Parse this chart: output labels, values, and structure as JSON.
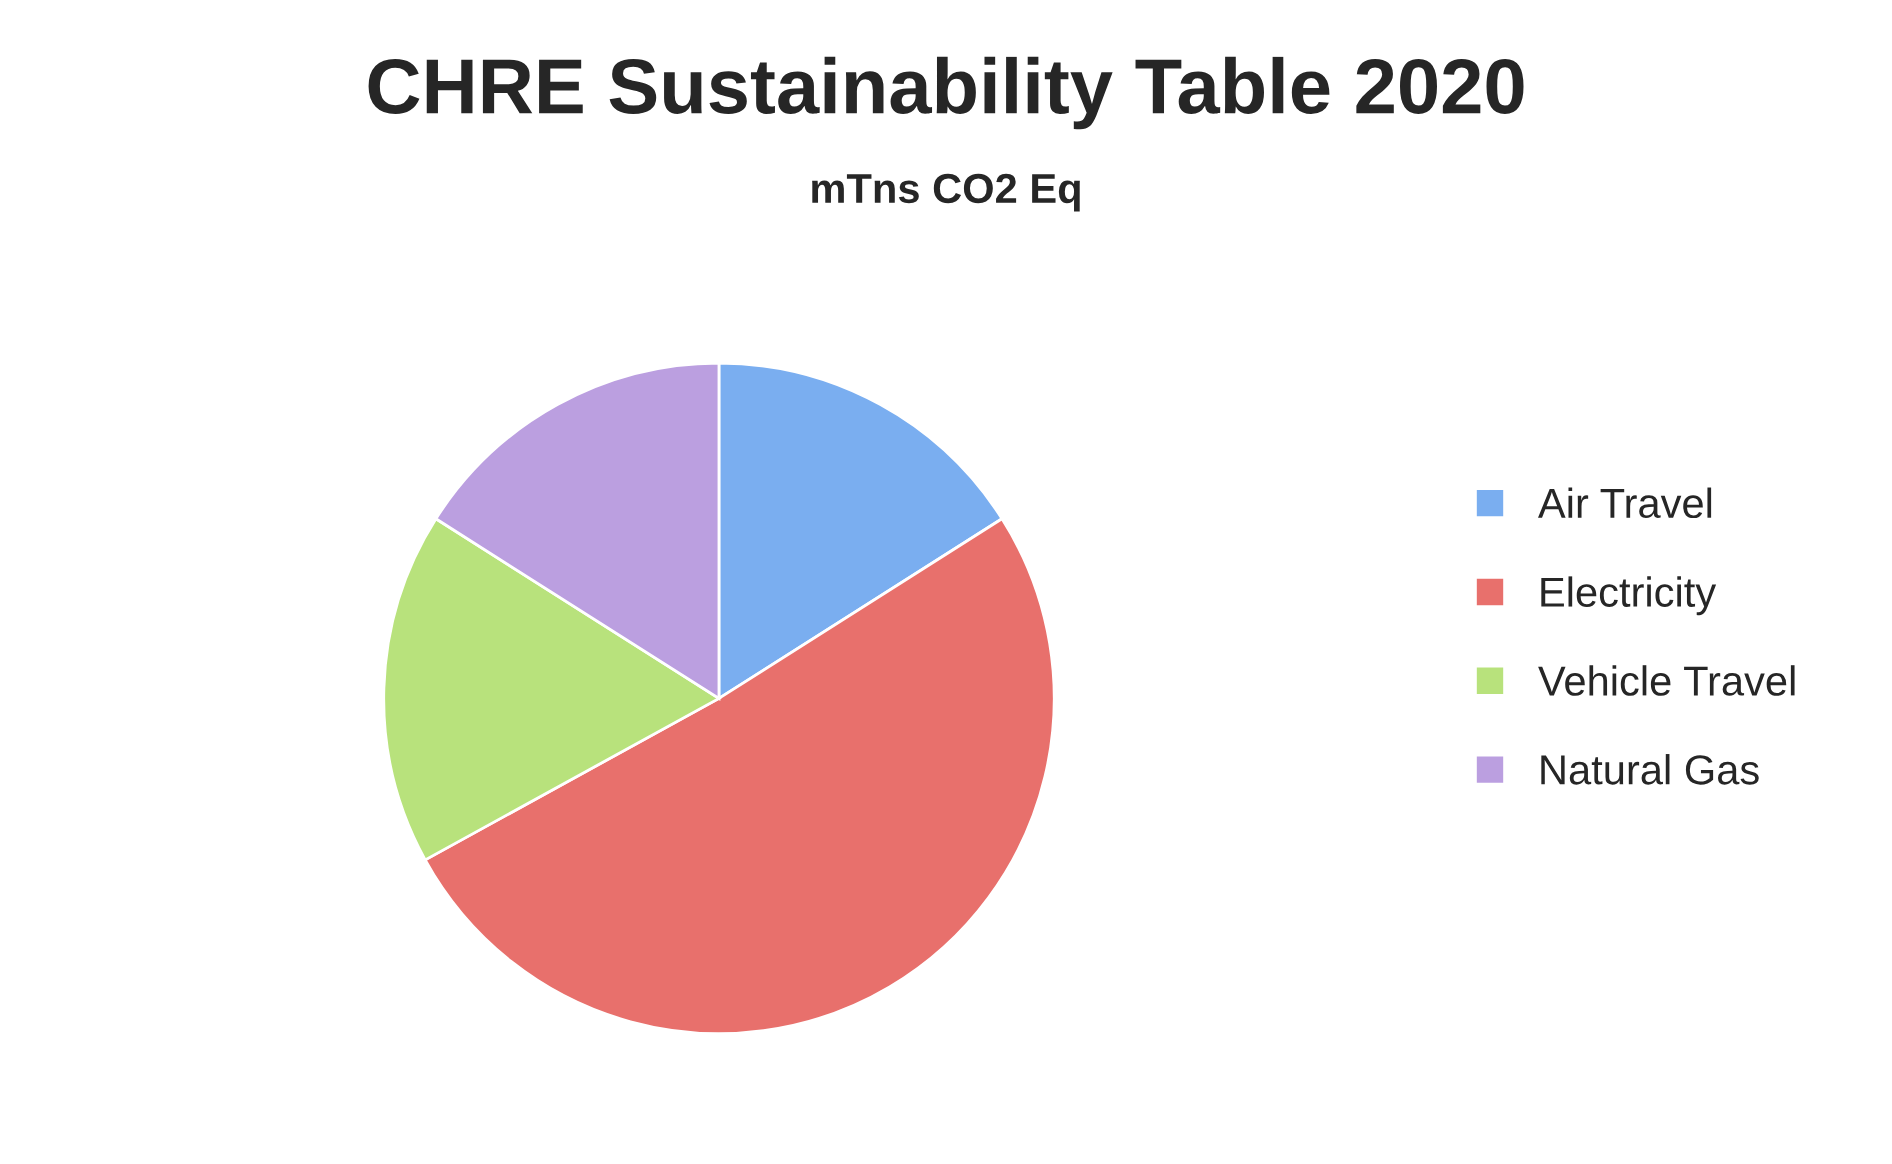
{
  "chart_data": {
    "type": "pie",
    "title": "CHRE Sustainability Table 2020",
    "subtitle": "mTns CO2 Eq",
    "categories": [
      "Air Travel",
      "Electricity",
      "Vehicle Travel",
      "Natural Gas"
    ],
    "values": [
      16,
      51,
      17,
      16
    ],
    "colors": [
      "#7aaef0",
      "#e8706c",
      "#b8e27c",
      "#bb9fe0"
    ],
    "legend": "right"
  }
}
